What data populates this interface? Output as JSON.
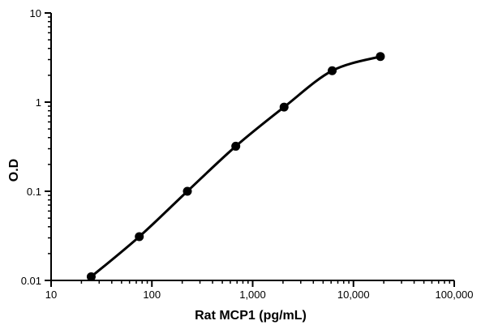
{
  "chart_data": {
    "type": "line",
    "title": "",
    "xlabel": "Rat MCP1 (pg/mL)",
    "ylabel": "O.D",
    "x_scale": "log",
    "y_scale": "log",
    "xlim": [
      10,
      100000
    ],
    "ylim": [
      0.01,
      10
    ],
    "x_ticks": [
      10,
      100,
      1000,
      10000,
      100000
    ],
    "x_tick_labels": [
      "10",
      "100",
      "1,000",
      "10,000",
      "100,000"
    ],
    "y_ticks": [
      0.01,
      0.1,
      1,
      10
    ],
    "y_tick_labels": [
      "0.01",
      "0.1",
      "1",
      "10"
    ],
    "grid": false,
    "legend": "none",
    "series": [
      {
        "x": [
          25,
          75,
          225,
          680,
          2050,
          6150,
          18500
        ],
        "y": [
          0.011,
          0.031,
          0.1,
          0.32,
          0.88,
          2.25,
          3.25
        ],
        "color": "#000000",
        "marker": "circle"
      }
    ]
  }
}
